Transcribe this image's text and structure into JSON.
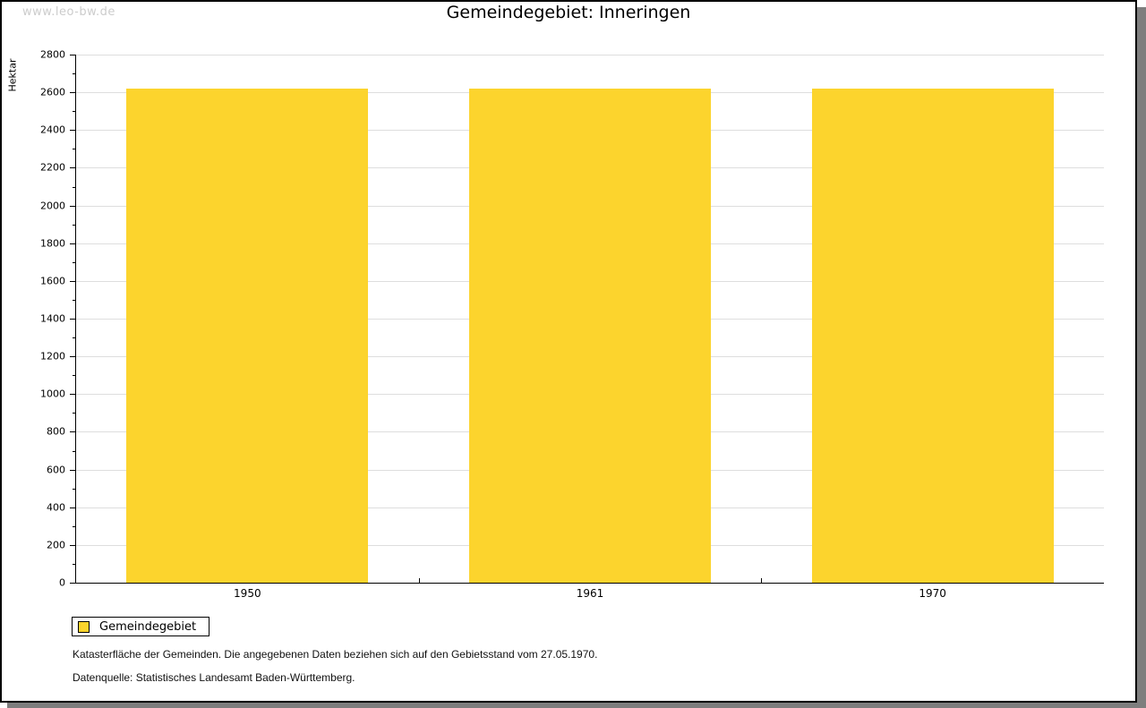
{
  "watermark": "www.leo-bw.de",
  "title": "Gemeindegebiet: Inneringen",
  "chart_data": {
    "type": "bar",
    "categories": [
      "1950",
      "1961",
      "1970"
    ],
    "values": [
      2622,
      2622,
      2622
    ],
    "title": "Gemeindegebiet: Inneringen",
    "xlabel": "",
    "ylabel": "Hektar",
    "ylim": [
      0,
      2800
    ],
    "y_major_step": 200,
    "y_minor_step": 100,
    "grid": "horizontal-major",
    "legend_position": "bottom-left",
    "legend_label": "Gemeindegebiet",
    "bar_color": "#fcd42d",
    "grid_color": "#dedede",
    "axis_color": "#000000"
  },
  "footer": {
    "line1": "Katasterfläche der Gemeinden. Die angegebenen Daten beziehen sich auf den Gebietsstand vom 27.05.1970.",
    "line2": "Datenquelle: Statistisches Landesamt Baden-Württemberg."
  }
}
